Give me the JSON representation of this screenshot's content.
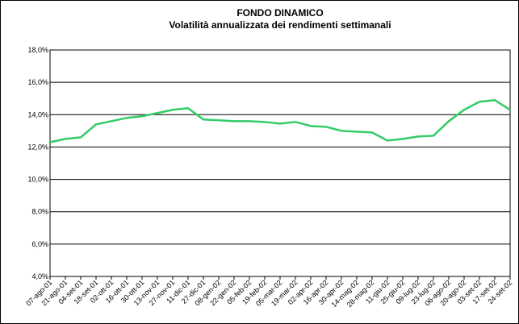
{
  "chart_data": {
    "type": "line",
    "title": "FONDO DINAMICO",
    "subtitle": "Volatilità annualizzata dei rendimenti settimanali",
    "categories": [
      "07-ago-01",
      "21-ago-01",
      "04-set-01",
      "18-set-01",
      "02-ott-01",
      "16-ott-01",
      "30-ott-01",
      "13-nov-01",
      "27-nov-01",
      "11-dic-01",
      "27-dic-01",
      "08-gen-02",
      "22-gen-02",
      "05-feb-02",
      "19-feb-02",
      "05-mar-02",
      "19-mar-02",
      "02-apr-02",
      "16-apr-02",
      "30-apr-02",
      "14-mag-02",
      "28-mag-02",
      "11-giu-02",
      "25-giu-02",
      "09-lug-02",
      "23-lug-02",
      "06-ago-02",
      "20-ago-02",
      "03-set-02",
      "17-set-02",
      "24-set-02"
    ],
    "series": [
      {
        "name": "Volatilità",
        "color": "#33cc66",
        "values": [
          12.3,
          12.5,
          12.6,
          13.4,
          13.6,
          13.8,
          13.9,
          14.1,
          14.3,
          14.4,
          13.7,
          13.65,
          13.6,
          13.6,
          13.55,
          13.45,
          13.55,
          13.3,
          13.25,
          13.0,
          12.95,
          12.9,
          12.4,
          12.5,
          12.65,
          12.7,
          13.6,
          14.3,
          14.8,
          14.9,
          14.3
        ]
      }
    ],
    "ylim": [
      4,
      18
    ],
    "yticks": [
      {
        "value": 4,
        "label": "4,0%"
      },
      {
        "value": 6,
        "label": "6,0%"
      },
      {
        "value": 8,
        "label": "8,0%"
      },
      {
        "value": 10,
        "label": "10,0%"
      },
      {
        "value": 12,
        "label": "12,0%"
      },
      {
        "value": 14,
        "label": "14,0%"
      },
      {
        "value": 16,
        "label": "16,0%"
      },
      {
        "value": 18,
        "label": "18,0%"
      }
    ],
    "grid": true
  }
}
